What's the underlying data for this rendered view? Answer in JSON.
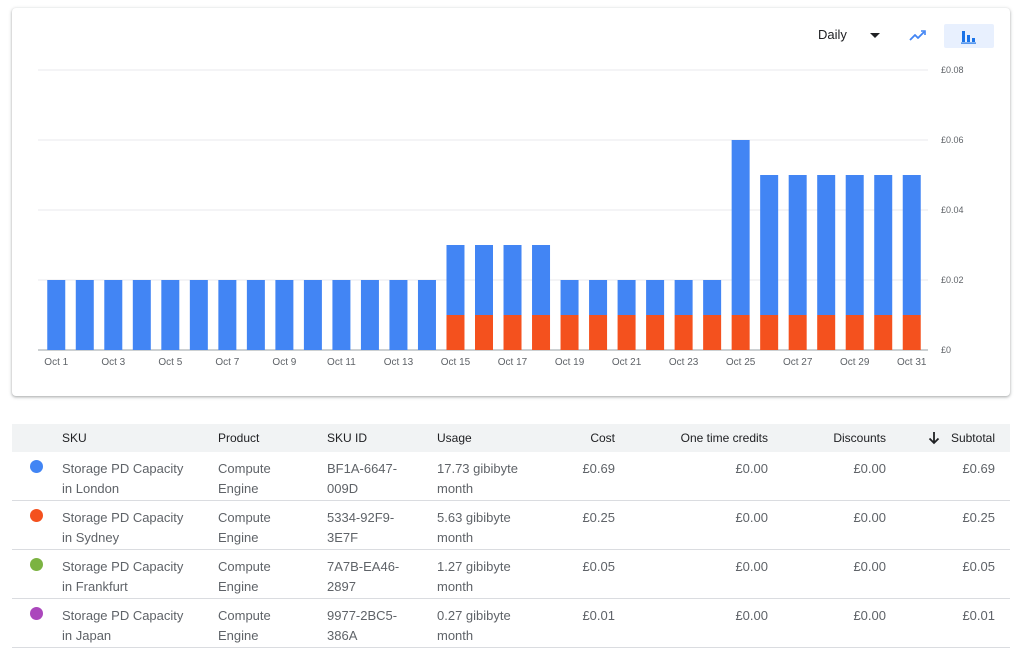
{
  "toolbar": {
    "period_label": "Daily",
    "line_view_icon": "trend-line-icon",
    "bar_view_icon": "bar-chart-icon",
    "active_view": "bar",
    "accent": "#4285f4"
  },
  "chart_data": {
    "type": "bar",
    "stacked": true,
    "categories": [
      "Oct 1",
      "Oct 2",
      "Oct 3",
      "Oct 4",
      "Oct 5",
      "Oct 6",
      "Oct 7",
      "Oct 8",
      "Oct 9",
      "Oct 10",
      "Oct 11",
      "Oct 12",
      "Oct 13",
      "Oct 14",
      "Oct 15",
      "Oct 16",
      "Oct 17",
      "Oct 18",
      "Oct 19",
      "Oct 20",
      "Oct 21",
      "Oct 22",
      "Oct 23",
      "Oct 24",
      "Oct 25",
      "Oct 26",
      "Oct 27",
      "Oct 28",
      "Oct 29",
      "Oct 30",
      "Oct 31"
    ],
    "x_tick_labels": [
      "Oct 1",
      "Oct 3",
      "Oct 5",
      "Oct 7",
      "Oct 9",
      "Oct 11",
      "Oct 13",
      "Oct 15",
      "Oct 17",
      "Oct 19",
      "Oct 21",
      "Oct 23",
      "Oct 25",
      "Oct 27",
      "Oct 29",
      "Oct 31"
    ],
    "series": [
      {
        "color": "#f4511e",
        "values": [
          0,
          0,
          0,
          0,
          0,
          0,
          0,
          0,
          0,
          0,
          0,
          0,
          0,
          0,
          0.01,
          0.01,
          0.01,
          0.01,
          0.01,
          0.01,
          0.01,
          0.01,
          0.01,
          0.01,
          0.01,
          0.01,
          0.01,
          0.01,
          0.01,
          0.01,
          0.01
        ]
      },
      {
        "color": "#4285f4",
        "values": [
          0.02,
          0.02,
          0.02,
          0.02,
          0.02,
          0.02,
          0.02,
          0.02,
          0.02,
          0.02,
          0.02,
          0.02,
          0.02,
          0.02,
          0.02,
          0.02,
          0.02,
          0.02,
          0.01,
          0.01,
          0.01,
          0.01,
          0.01,
          0.01,
          0.05,
          0.04,
          0.04,
          0.04,
          0.04,
          0.04,
          0.04
        ]
      }
    ],
    "y_ticks": [
      "£0",
      "£0.02",
      "£0.04",
      "£0.06",
      "£0.08"
    ],
    "ylim": [
      0,
      0.08
    ],
    "grid": true,
    "y_axis_position": "right"
  },
  "table": {
    "headers": {
      "sku": "SKU",
      "product": "Product",
      "sku_id": "SKU ID",
      "usage": "Usage",
      "cost": "Cost",
      "credits": "One time credits",
      "discounts": "Discounts",
      "subtotal": "Subtotal"
    },
    "sort_icon": "arrow-down-icon",
    "rows": [
      {
        "color": "#4285f4",
        "sku_line1": "Storage PD Capacity",
        "sku_line2": "in London",
        "product_line1": "Compute",
        "product_line2": "Engine",
        "sku_id_line1": "BF1A-6647-",
        "sku_id_line2": "009D",
        "usage_line1": "17.73 gibibyte",
        "usage_line2": "month",
        "cost": "£0.69",
        "credits": "£0.00",
        "discounts": "£0.00",
        "subtotal": "£0.69"
      },
      {
        "color": "#f4511e",
        "sku_line1": "Storage PD Capacity",
        "sku_line2": "in Sydney",
        "product_line1": "Compute",
        "product_line2": "Engine",
        "sku_id_line1": "5334-92F9-",
        "sku_id_line2": "3E7F",
        "usage_line1": "5.63 gibibyte",
        "usage_line2": "month",
        "cost": "£0.25",
        "credits": "£0.00",
        "discounts": "£0.00",
        "subtotal": "£0.25"
      },
      {
        "color": "#7cb342",
        "sku_line1": "Storage PD Capacity",
        "sku_line2": "in Frankfurt",
        "product_line1": "Compute",
        "product_line2": "Engine",
        "sku_id_line1": "7A7B-EA46-",
        "sku_id_line2": "2897",
        "usage_line1": "1.27 gibibyte",
        "usage_line2": "month",
        "cost": "£0.05",
        "credits": "£0.00",
        "discounts": "£0.00",
        "subtotal": "£0.05"
      },
      {
        "color": "#ab47bc",
        "sku_line1": "Storage PD Capacity",
        "sku_line2": "in Japan",
        "product_line1": "Compute",
        "product_line2": "Engine",
        "sku_id_line1": "9977-2BC5-",
        "sku_id_line2": "386A",
        "usage_line1": "0.27 gibibyte",
        "usage_line2": "month",
        "cost": "£0.01",
        "credits": "£0.00",
        "discounts": "£0.00",
        "subtotal": "£0.01"
      }
    ]
  }
}
